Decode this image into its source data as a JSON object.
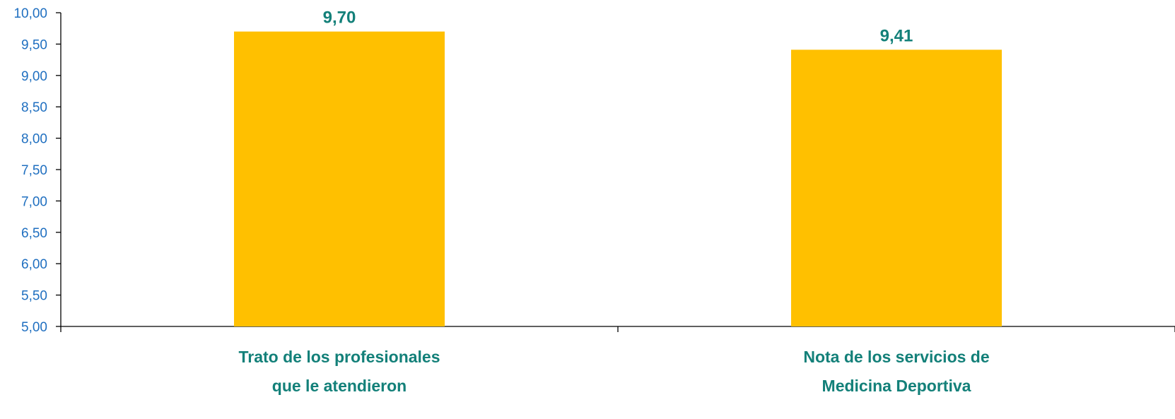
{
  "chart_data": {
    "type": "bar",
    "categories": [
      [
        "Trato de los profesionales",
        "que le atendieron"
      ],
      [
        "Nota de los servicios de",
        "Medicina Deportiva"
      ]
    ],
    "values": [
      9.7,
      9.41
    ],
    "value_labels": [
      "9,70",
      "9,41"
    ],
    "ylim": [
      5.0,
      10.0
    ],
    "yticks": [
      5.0,
      5.5,
      6.0,
      6.5,
      7.0,
      7.5,
      8.0,
      8.5,
      9.0,
      9.5,
      10.0
    ],
    "ytick_labels": [
      "5,00",
      "5,50",
      "6,00",
      "6,50",
      "7,00",
      "7,50",
      "8,00",
      "8,50",
      "9,00",
      "9,50",
      "10,00"
    ],
    "title": "",
    "xlabel": "",
    "ylabel": "",
    "grid": false,
    "colors": {
      "bar": "#FFC000",
      "data_label": "#138079",
      "category_label": "#138079",
      "tick_label": "#1F6FC0",
      "axis": "#000000"
    }
  }
}
